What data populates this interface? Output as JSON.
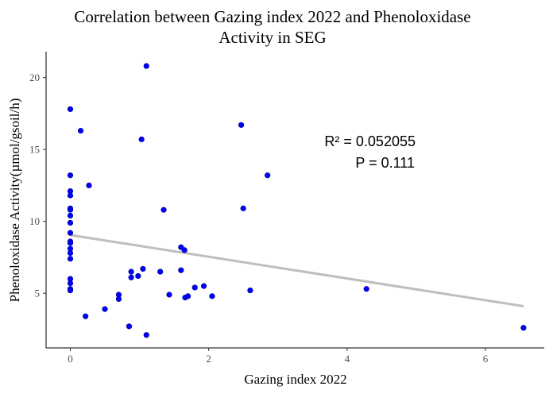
{
  "chart_data": {
    "type": "scatter",
    "title_lines": [
      "Correlation between Gazing index 2022 and Phenoloxidase",
      "Activity in SEG"
    ],
    "xlabel": "Gazing index 2022",
    "ylabel": "Phenoloxidase Activity(µmol/gsoil/h)",
    "xlim": [
      -0.35,
      6.85
    ],
    "ylim": [
      1.2,
      21.8
    ],
    "x_ticks": [
      0,
      2,
      4,
      6
    ],
    "y_ticks": [
      5,
      10,
      15,
      20
    ],
    "x_tick_labels": [
      "0",
      "2",
      "4",
      "6"
    ],
    "y_tick_labels": [
      "5",
      "10",
      "15",
      "20"
    ],
    "grid": false,
    "point_color": "#0000ff",
    "trend_color": "#bebebe",
    "trend_line": {
      "x": [
        0,
        6.55
      ],
      "y": [
        9.05,
        4.1
      ]
    },
    "annotations": {
      "r2": "R² = 0.052055",
      "p": "P = 0.111"
    },
    "points": [
      {
        "x": 0,
        "y": 17.8
      },
      {
        "x": 0,
        "y": 13.2
      },
      {
        "x": 0,
        "y": 12.1
      },
      {
        "x": 0,
        "y": 11.8
      },
      {
        "x": 0,
        "y": 10.9
      },
      {
        "x": 0,
        "y": 10.8
      },
      {
        "x": 0,
        "y": 10.4
      },
      {
        "x": 0,
        "y": 9.9
      },
      {
        "x": 0,
        "y": 9.2
      },
      {
        "x": 0,
        "y": 8.6
      },
      {
        "x": 0,
        "y": 8.5
      },
      {
        "x": 0,
        "y": 8.1
      },
      {
        "x": 0,
        "y": 7.8
      },
      {
        "x": 0,
        "y": 7.4
      },
      {
        "x": 0,
        "y": 6.0
      },
      {
        "x": 0,
        "y": 5.7
      },
      {
        "x": 0,
        "y": 5.3
      },
      {
        "x": 0,
        "y": 5.2
      },
      {
        "x": 0.15,
        "y": 16.3
      },
      {
        "x": 0.22,
        "y": 3.4
      },
      {
        "x": 0.27,
        "y": 12.5
      },
      {
        "x": 0.5,
        "y": 3.9
      },
      {
        "x": 0.7,
        "y": 4.9
      },
      {
        "x": 0.7,
        "y": 4.6
      },
      {
        "x": 0.85,
        "y": 2.7
      },
      {
        "x": 0.88,
        "y": 6.5
      },
      {
        "x": 0.88,
        "y": 6.1
      },
      {
        "x": 0.98,
        "y": 6.2
      },
      {
        "x": 1.03,
        "y": 15.7
      },
      {
        "x": 1.05,
        "y": 6.7
      },
      {
        "x": 1.1,
        "y": 20.8
      },
      {
        "x": 1.1,
        "y": 2.1
      },
      {
        "x": 1.3,
        "y": 6.5
      },
      {
        "x": 1.35,
        "y": 10.8
      },
      {
        "x": 1.43,
        "y": 4.9
      },
      {
        "x": 1.6,
        "y": 8.2
      },
      {
        "x": 1.6,
        "y": 6.6
      },
      {
        "x": 1.65,
        "y": 8.0
      },
      {
        "x": 1.66,
        "y": 4.7
      },
      {
        "x": 1.7,
        "y": 4.8
      },
      {
        "x": 1.8,
        "y": 5.4
      },
      {
        "x": 1.93,
        "y": 5.5
      },
      {
        "x": 2.05,
        "y": 4.8
      },
      {
        "x": 2.47,
        "y": 16.7
      },
      {
        "x": 2.5,
        "y": 10.9
      },
      {
        "x": 2.6,
        "y": 5.2
      },
      {
        "x": 2.85,
        "y": 13.2
      },
      {
        "x": 4.28,
        "y": 5.3
      },
      {
        "x": 6.55,
        "y": 2.6
      }
    ]
  }
}
